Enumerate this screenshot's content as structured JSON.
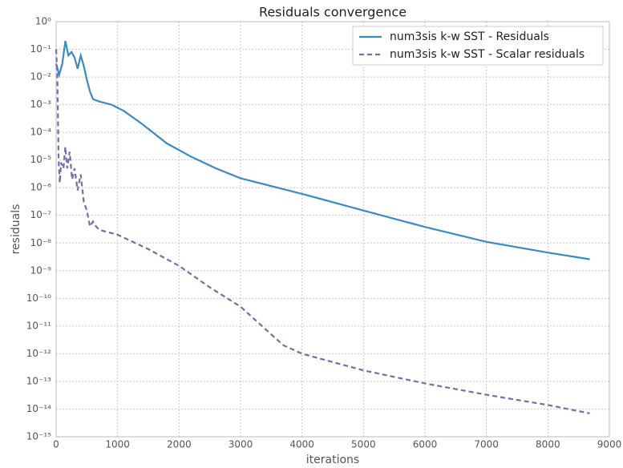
{
  "chart_data": {
    "type": "line",
    "title": "Residuals convergence",
    "x_label": "iterations",
    "y_label": "residuals",
    "log_y": true,
    "grid": true,
    "legend": "upper right",
    "xlim": [
      0,
      9000
    ],
    "xticks": [
      0,
      1000,
      2000,
      3000,
      4000,
      5000,
      6000,
      7000,
      8000,
      9000
    ],
    "ylim": [
      1e-15,
      1
    ],
    "yticks": [
      {
        "value": 1,
        "label": "10⁰"
      },
      {
        "value": 0.1,
        "label": "10⁻¹"
      },
      {
        "value": 0.01,
        "label": "10⁻²"
      },
      {
        "value": 0.001,
        "label": "10⁻³"
      },
      {
        "value": 0.0001,
        "label": "10⁻⁴"
      },
      {
        "value": 1e-05,
        "label": "10⁻⁵"
      },
      {
        "value": 1e-06,
        "label": "10⁻⁶"
      },
      {
        "value": 1e-07,
        "label": "10⁻⁷"
      },
      {
        "value": 1e-08,
        "label": "10⁻⁸"
      },
      {
        "value": 1e-09,
        "label": "10⁻⁹"
      },
      {
        "value": 1e-10,
        "label": "10⁻¹⁰"
      },
      {
        "value": 1e-11,
        "label": "10⁻¹¹"
      },
      {
        "value": 1e-12,
        "label": "10⁻¹²"
      },
      {
        "value": 1e-13,
        "label": "10⁻¹³"
      },
      {
        "value": 1e-14,
        "label": "10⁻¹⁴"
      },
      {
        "value": 1e-15,
        "label": "10⁻¹⁵"
      }
    ],
    "series": [
      {
        "name": "num3sis k-w SST - Residuals",
        "color": "#3a8bbf",
        "dash": false,
        "x": [
          0,
          50,
          100,
          150,
          200,
          250,
          300,
          350,
          400,
          450,
          500,
          550,
          600,
          700,
          900,
          1100,
          1400,
          1800,
          2200,
          2600,
          3000,
          4000,
          5000,
          6000,
          7000,
          8000,
          8680
        ],
        "values": [
          0.03,
          0.012,
          0.03,
          0.2,
          0.06,
          0.08,
          0.05,
          0.02,
          0.06,
          0.025,
          0.008,
          0.003,
          0.0016,
          0.0013,
          0.001,
          0.0006,
          0.0002,
          4e-05,
          1.3e-05,
          5e-06,
          2.2e-06,
          6e-07,
          1.5e-07,
          3.8e-08,
          1.1e-08,
          4.5e-09,
          2.6e-09
        ]
      },
      {
        "name": "num3sis k-w SST - Scalar residuals",
        "color": "#7a6ba8",
        "dash": true,
        "x": [
          0,
          20,
          40,
          60,
          80,
          120,
          150,
          180,
          220,
          260,
          300,
          350,
          400,
          450,
          500,
          550,
          600,
          650,
          700,
          1000,
          1500,
          2000,
          2500,
          3000,
          3500,
          3700,
          4000,
          4500,
          5000,
          6000,
          7000,
          8000,
          8680
        ],
        "values": [
          0.1,
          0.01,
          1e-05,
          1.5e-06,
          8e-06,
          5e-06,
          3e-05,
          5e-06,
          2e-05,
          2e-06,
          5e-06,
          8e-07,
          3e-06,
          3e-07,
          1.5e-07,
          4e-08,
          6e-08,
          4e-08,
          3e-08,
          2e-08,
          6e-09,
          1.5e-09,
          2.5e-10,
          5e-11,
          5e-12,
          2e-12,
          1e-12,
          5e-13,
          2.5e-13,
          8.5e-14,
          3.3e-14,
          1.4e-14,
          7e-15
        ]
      }
    ]
  }
}
